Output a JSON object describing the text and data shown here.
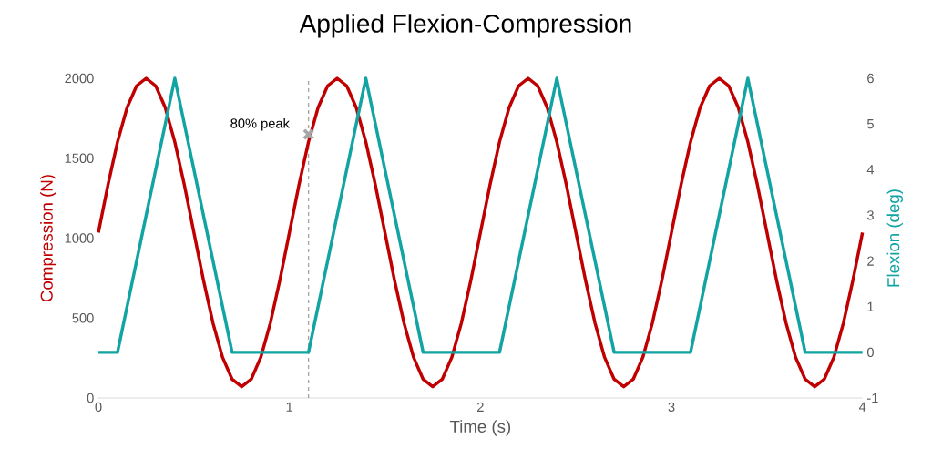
{
  "chart_data": {
    "type": "line",
    "title": "Applied Flexion-Compression",
    "xlabel": "Time (s)",
    "ylabel": "Compression (N)",
    "y2label": "Flexion (deg)",
    "x": [
      0,
      0.05,
      0.1,
      0.15,
      0.2,
      0.25,
      0.3,
      0.35,
      0.4,
      0.45,
      0.5,
      0.55,
      0.6,
      0.65,
      0.7,
      0.75,
      0.8,
      0.85,
      0.9,
      0.95,
      1,
      1.05,
      1.1,
      1.15,
      1.2,
      1.25,
      1.3,
      1.35,
      1.4,
      1.45,
      1.5,
      1.55,
      1.6,
      1.65,
      1.7,
      1.75,
      1.8,
      1.85,
      1.9,
      1.95,
      2,
      2.05,
      2.1,
      2.15,
      2.2,
      2.25,
      2.3,
      2.35,
      2.4,
      2.45,
      2.5,
      2.55,
      2.6,
      2.65,
      2.7,
      2.75,
      2.8,
      2.85,
      2.9,
      2.95,
      3,
      3.05,
      3.1,
      3.15,
      3.2,
      3.25,
      3.3,
      3.35,
      3.4,
      3.45,
      3.5,
      3.55,
      3.6,
      3.65,
      3.7,
      3.75,
      3.8,
      3.85,
      3.9,
      3.95,
      4
    ],
    "series": [
      {
        "color": "#c00000",
        "values": [
          1035,
          1333,
          1602,
          1816,
          1953,
          2000,
          1953,
          1816,
          1602,
          1333,
          1035,
          737,
          468,
          254,
          117,
          70,
          117,
          254,
          468,
          737,
          1035,
          1333,
          1602,
          1816,
          1953,
          2000,
          1953,
          1816,
          1602,
          1333,
          1035,
          737,
          468,
          254,
          117,
          70,
          117,
          254,
          468,
          737,
          1035,
          1333,
          1602,
          1816,
          1953,
          2000,
          1953,
          1816,
          1602,
          1333,
          1035,
          737,
          468,
          254,
          117,
          70,
          117,
          254,
          468,
          737,
          1035,
          1333,
          1602,
          1816,
          1953,
          2000,
          1953,
          1816,
          1602,
          1333,
          1035,
          737,
          468,
          254,
          117,
          70,
          117,
          254,
          468,
          737,
          1035
        ]
      },
      {
        "type": "line",
        "axis": "y2",
        "color": "#12a3a3",
        "x": [
          0,
          0.1,
          0.4,
          0.7,
          1.1,
          1.4,
          1.7,
          2.1,
          2.4,
          2.7,
          3.1,
          3.4,
          3.7,
          4
        ],
        "values": [
          0,
          0,
          6,
          0,
          0,
          6,
          0,
          0,
          6,
          0,
          0,
          6,
          0,
          0
        ]
      },
      {
        "type": "scatter",
        "marker": "cross",
        "color": "#a6a6a6",
        "x": [
          1.1
        ],
        "values": [
          1650
        ]
      }
    ],
    "annotations": [
      {
        "text": "80% peak",
        "x": 1.1,
        "y": 1650
      }
    ],
    "ref_lines": [
      {
        "axis": "x",
        "value": 1.1,
        "color": "#a6a6a6",
        "line_style": "dashed"
      }
    ],
    "xlim": [
      0,
      4
    ],
    "ylim": [
      0,
      2000
    ],
    "y2lim": [
      -1,
      6
    ],
    "xticks": [
      0,
      1,
      2,
      3,
      4
    ],
    "yticks": [
      0,
      500,
      1000,
      1500,
      2000
    ],
    "y2ticks": [
      -1,
      0,
      1,
      2,
      3,
      4,
      5,
      6
    ]
  }
}
